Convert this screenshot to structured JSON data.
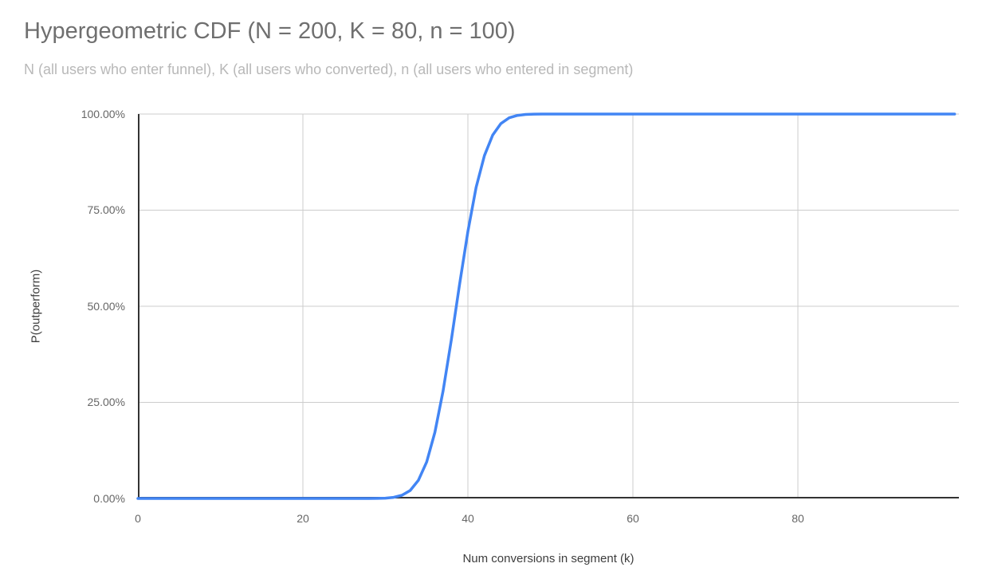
{
  "chart": {
    "title": "Hypergeometric CDF (N = 200, K = 80, n = 100)",
    "subtitle": "N (all users who enter funnel), K (all users who converted), n (all users who entered in segment)"
  },
  "chart_data": {
    "type": "line",
    "title": "Hypergeometric CDF (N = 200, K = 80, n = 100)",
    "subtitle": "N (all users who enter funnel), K (all users who converted), n (all users who entered in segment)",
    "xlabel": "Num conversions in segment (k)",
    "ylabel": "P(outperform)",
    "xlim": [
      0,
      99.5
    ],
    "ylim": [
      0,
      1
    ],
    "grid": true,
    "legend": "none",
    "x_ticks": [
      0,
      20,
      40,
      60,
      80
    ],
    "x_tick_labels": [
      "0",
      "20",
      "40",
      "60",
      "80"
    ],
    "y_ticks_pct": [
      0,
      25,
      50,
      75,
      100
    ],
    "y_tick_labels": [
      "100.00%",
      "75.00%",
      "50.00%",
      "25.00%",
      "0.00%"
    ],
    "line_color": "#4285f4",
    "series": [
      {
        "name": "P(outperform)",
        "x": [
          0,
          1,
          2,
          3,
          4,
          5,
          6,
          7,
          8,
          9,
          10,
          11,
          12,
          13,
          14,
          15,
          16,
          17,
          18,
          19,
          20,
          21,
          22,
          23,
          24,
          25,
          26,
          27,
          28,
          29,
          30,
          31,
          32,
          33,
          34,
          35,
          36,
          37,
          38,
          39,
          40,
          41,
          42,
          43,
          44,
          45,
          46,
          47,
          48,
          49,
          50,
          51,
          52,
          53,
          54,
          55,
          56,
          57,
          58,
          59,
          60,
          61,
          62,
          63,
          64,
          65,
          66,
          67,
          68,
          69,
          70,
          71,
          72,
          73,
          74,
          75,
          76,
          77,
          78,
          79,
          80,
          81,
          82,
          83,
          84,
          85,
          86,
          87,
          88,
          89,
          90,
          91,
          92,
          93,
          94,
          95,
          96,
          97,
          98,
          99
        ],
        "y_pct": [
          0,
          0,
          0,
          0,
          0,
          0,
          0,
          0,
          0,
          0,
          0,
          0,
          0,
          0,
          0,
          0,
          0,
          0,
          0,
          0,
          0,
          0,
          0,
          0,
          0,
          0,
          0,
          0,
          0.01,
          0.03,
          0.09,
          0.29,
          0.82,
          2.07,
          4.72,
          9.51,
          17.21,
          28.01,
          41.37,
          55.77,
          69.47,
          80.93,
          89.18,
          94.52,
          97.54,
          99.02,
          99.65,
          99.89,
          99.97,
          99.99,
          100,
          100,
          100,
          100,
          100,
          100,
          100,
          100,
          100,
          100,
          100,
          100,
          100,
          100,
          100,
          100,
          100,
          100,
          100,
          100,
          100,
          100,
          100,
          100,
          100,
          100,
          100,
          100,
          100,
          100,
          100,
          100,
          100,
          100,
          100,
          100,
          100,
          100,
          100,
          100,
          100,
          100,
          100,
          100,
          100,
          100,
          100,
          100,
          100,
          100,
          100
        ]
      }
    ]
  },
  "colors": {
    "background": "#ffffff",
    "title": "#6f6f6f",
    "subtitle": "#b8b8b8",
    "tick_label": "#666666",
    "axis_title": "#3d3d3d",
    "gridline": "#cccccc",
    "axis_line": "#333333",
    "line": "#4285f4"
  }
}
